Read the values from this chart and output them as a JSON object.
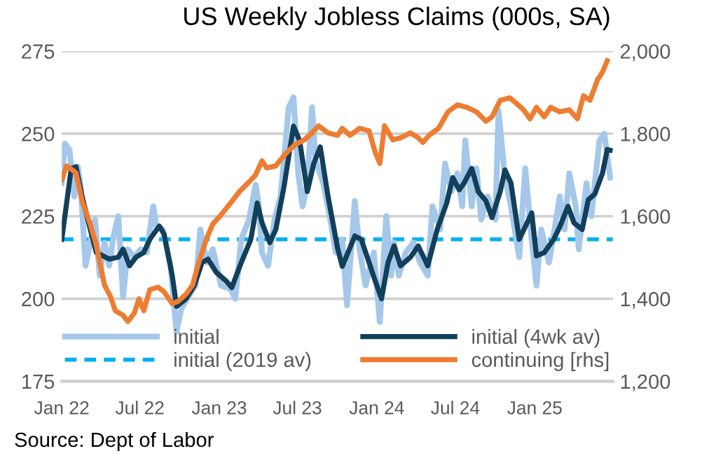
{
  "chart_data": {
    "type": "line",
    "title": "US Weekly Jobless Claims (000s, SA)",
    "annotations": [
      "Source: Dept of Labor"
    ],
    "xlim": [
      "2022-01-01",
      "2025-07-01"
    ],
    "xticks": [
      {
        "value": "2022-01-01",
        "label": "Jan 22"
      },
      {
        "value": "2022-07-01",
        "label": "Jul 22"
      },
      {
        "value": "2023-01-01",
        "label": "Jan 23"
      },
      {
        "value": "2023-07-01",
        "label": "Jul 23"
      },
      {
        "value": "2024-01-01",
        "label": "Jan 24"
      },
      {
        "value": "2024-07-01",
        "label": "Jul 24"
      },
      {
        "value": "2025-01-01",
        "label": "Jan 25"
      }
    ],
    "ylim": [
      175,
      275
    ],
    "yticks": [
      175,
      200,
      225,
      250,
      275
    ],
    "y2lim": [
      1200,
      2000
    ],
    "y2ticks": [
      {
        "value": 1200,
        "label": "1,200"
      },
      {
        "value": 1400,
        "label": "1,400"
      },
      {
        "value": 1600,
        "label": "1,600"
      },
      {
        "value": 1800,
        "label": "1,800"
      },
      {
        "value": 2000,
        "label": "2,000"
      }
    ],
    "grid": "y",
    "legend": "bottom",
    "marker": "none",
    "ref_lines": [
      {
        "axis": "y",
        "value": 218,
        "label": "initial (2019 av)",
        "color": "#00b0f0",
        "line_style": "dashed"
      }
    ],
    "series": [
      {
        "name": "initial",
        "color": "#a5c8ea",
        "x": [
          "2022-01-01",
          "2022-01-08",
          "2022-01-19",
          "2022-01-30",
          "2022-02-07",
          "2022-02-14",
          "2022-02-25",
          "2022-03-08",
          "2022-03-19",
          "2022-03-30",
          "2022-04-10",
          "2022-04-21",
          "2022-05-01",
          "2022-05-12",
          "2022-05-23",
          "2022-06-03",
          "2022-06-18",
          "2022-07-03",
          "2022-07-17",
          "2022-08-01",
          "2022-08-08",
          "2022-08-23",
          "2022-09-10",
          "2022-09-24",
          "2022-10-05",
          "2022-10-20",
          "2022-11-07",
          "2022-11-18",
          "2022-12-03",
          "2022-12-17",
          "2023-01-05",
          "2023-01-27",
          "2023-02-07",
          "2023-02-21",
          "2023-03-11",
          "2023-03-26",
          "2023-04-02",
          "2023-04-10",
          "2023-04-24",
          "2023-05-09",
          "2023-05-23",
          "2023-06-11",
          "2023-06-22",
          "2023-07-03",
          "2023-07-13",
          "2023-07-24",
          "2023-08-04",
          "2023-08-12",
          "2023-08-30",
          "2023-09-14",
          "2023-09-28",
          "2023-10-13",
          "2023-10-24",
          "2023-11-11",
          "2023-11-22",
          "2023-12-06",
          "2023-12-25",
          "2024-01-08",
          "2024-01-23",
          "2024-02-03",
          "2024-02-10",
          "2024-02-21",
          "2024-03-08",
          "2024-03-26",
          "2024-04-10",
          "2024-04-28",
          "2024-05-09",
          "2024-05-27",
          "2024-06-07",
          "2024-06-22",
          "2024-07-06",
          "2024-07-17",
          "2024-07-24",
          "2024-08-08",
          "2024-08-19",
          "2024-08-30",
          "2024-09-14",
          "2024-10-02",
          "2024-10-09",
          "2024-10-24",
          "2024-11-07",
          "2024-11-26",
          "2024-12-10",
          "2024-12-25",
          "2025-01-05",
          "2025-01-16",
          "2025-02-03",
          "2025-02-17",
          "2025-02-28",
          "2025-03-11",
          "2025-03-22",
          "2025-04-06",
          "2025-04-13",
          "2025-05-01",
          "2025-05-12",
          "2025-05-31",
          "2025-06-11",
          "2025-06-25"
        ],
        "values": [
          235,
          247,
          245,
          231,
          240,
          234,
          210,
          217,
          224,
          207,
          217,
          210,
          219,
          225,
          200.5,
          215,
          212.6,
          215,
          214,
          228,
          222,
          221,
          210,
          190,
          197,
          200.5,
          204,
          221,
          211,
          215,
          204,
          203,
          200,
          218,
          224,
          234.6,
          229,
          214,
          210,
          224,
          231,
          258,
          261,
          238,
          228,
          235,
          258,
          242,
          235,
          225,
          214,
          218,
          198,
          229.6,
          215,
          204,
          214,
          193,
          225,
          207,
          217,
          207,
          214,
          217,
          211,
          207,
          228,
          221,
          241,
          232.5,
          238,
          228,
          248,
          228,
          239.5,
          224,
          231,
          224,
          257,
          236.7,
          228,
          212.6,
          239.5,
          218,
          204,
          221,
          211,
          222,
          231,
          221,
          238,
          228,
          215,
          235,
          225,
          248,
          250,
          236.7
        ]
      },
      {
        "name": "initial (4wk av)",
        "color": "#123f5a",
        "x": [
          "2022-01-01",
          "2022-01-23",
          "2022-02-03",
          "2022-02-17",
          "2022-03-08",
          "2022-03-22",
          "2022-04-21",
          "2022-05-12",
          "2022-05-23",
          "2022-06-07",
          "2022-06-22",
          "2022-07-10",
          "2022-07-24",
          "2022-08-15",
          "2022-08-26",
          "2022-09-14",
          "2022-09-24",
          "2022-10-16",
          "2022-11-04",
          "2022-11-22",
          "2022-12-06",
          "2022-12-25",
          "2023-01-16",
          "2023-01-30",
          "2023-02-21",
          "2023-03-15",
          "2023-03-30",
          "2023-04-10",
          "2023-04-28",
          "2023-05-12",
          "2023-05-31",
          "2023-06-22",
          "2023-07-06",
          "2023-07-24",
          "2023-08-08",
          "2023-08-23",
          "2023-09-10",
          "2023-10-02",
          "2023-10-13",
          "2023-11-11",
          "2023-11-26",
          "2023-12-14",
          "2023-12-28",
          "2024-01-12",
          "2024-01-27",
          "2024-02-10",
          "2024-02-25",
          "2024-03-19",
          "2024-04-06",
          "2024-04-28",
          "2024-05-20",
          "2024-06-11",
          "2024-06-25",
          "2024-07-10",
          "2024-07-21",
          "2024-08-08",
          "2024-08-23",
          "2024-09-10",
          "2024-09-24",
          "2024-10-13",
          "2024-10-24",
          "2024-11-07",
          "2024-11-26",
          "2024-12-10",
          "2024-12-25",
          "2025-01-05",
          "2025-01-23",
          "2025-02-14",
          "2025-02-28",
          "2025-03-19",
          "2025-04-02",
          "2025-04-21",
          "2025-05-05",
          "2025-05-20",
          "2025-06-07",
          "2025-06-18",
          "2025-06-25"
        ],
        "values": [
          218,
          239.5,
          240,
          231,
          221,
          214,
          212,
          212.6,
          215,
          210,
          212.6,
          214,
          218,
          222,
          219.6,
          207,
          197.7,
          200,
          204,
          211,
          212,
          208,
          205.5,
          203.4,
          211,
          218,
          229,
          223,
          217,
          221,
          234,
          252.3,
          248,
          232.5,
          241,
          246,
          231,
          215.4,
          209.8,
          219,
          218,
          211,
          205.5,
          200,
          211,
          216,
          210,
          212.6,
          216,
          210,
          221,
          229,
          236.7,
          233,
          235,
          239.5,
          232.5,
          229.6,
          224.6,
          232.5,
          239,
          235,
          218,
          221.8,
          226,
          213,
          214,
          218,
          221.8,
          228,
          223,
          221,
          230,
          231.7,
          238,
          245.2,
          245
        ]
      },
      {
        "name": "continuing [rhs]",
        "color": "#ed7d31",
        "axis": "y2",
        "x": [
          "2022-01-01",
          "2022-01-12",
          "2022-01-23",
          "2022-02-03",
          "2022-02-17",
          "2022-03-08",
          "2022-03-22",
          "2022-04-10",
          "2022-04-24",
          "2022-05-05",
          "2022-05-23",
          "2022-06-03",
          "2022-06-18",
          "2022-06-29",
          "2022-07-10",
          "2022-07-24",
          "2022-08-12",
          "2022-08-26",
          "2022-09-14",
          "2022-09-28",
          "2022-10-16",
          "2022-10-31",
          "2022-11-15",
          "2022-12-03",
          "2022-12-17",
          "2023-01-05",
          "2023-01-27",
          "2023-02-17",
          "2023-03-11",
          "2023-03-26",
          "2023-04-10",
          "2023-04-21",
          "2023-05-12",
          "2023-06-03",
          "2023-06-25",
          "2023-07-17",
          "2023-08-04",
          "2023-08-19",
          "2023-09-10",
          "2023-10-02",
          "2023-10-13",
          "2023-10-31",
          "2023-11-22",
          "2023-12-14",
          "2023-12-28",
          "2024-01-08",
          "2024-01-19",
          "2024-02-07",
          "2024-02-25",
          "2024-03-19",
          "2024-04-06",
          "2024-04-17",
          "2024-05-01",
          "2024-05-23",
          "2024-06-14",
          "2024-07-06",
          "2024-07-28",
          "2024-08-19",
          "2024-09-10",
          "2024-09-24",
          "2024-10-13",
          "2024-11-04",
          "2024-11-18",
          "2024-12-06",
          "2024-12-21",
          "2025-01-05",
          "2025-01-23",
          "2025-02-07",
          "2025-02-28",
          "2025-03-22",
          "2025-04-10",
          "2025-04-24",
          "2025-05-09",
          "2025-05-27",
          "2025-06-07",
          "2025-06-18"
        ],
        "values": [
          1688,
          1722,
          1714,
          1705,
          1637,
          1581,
          1530,
          1433,
          1405,
          1371,
          1360,
          1345,
          1365,
          1400,
          1371,
          1422,
          1428,
          1417,
          1388,
          1394,
          1411,
          1433,
          1490,
          1547,
          1581,
          1603,
          1632,
          1660,
          1683,
          1700,
          1734,
          1717,
          1722,
          1751,
          1773,
          1785,
          1802,
          1819,
          1802,
          1796,
          1813,
          1796,
          1813,
          1807,
          1756,
          1728,
          1819,
          1785,
          1790,
          1802,
          1790,
          1779,
          1796,
          1813,
          1853,
          1870,
          1864,
          1853,
          1830,
          1841,
          1881,
          1887,
          1875,
          1858,
          1836,
          1864,
          1841,
          1864,
          1853,
          1858,
          1836,
          1892,
          1881,
          1932,
          1949,
          1977
        ]
      }
    ]
  }
}
